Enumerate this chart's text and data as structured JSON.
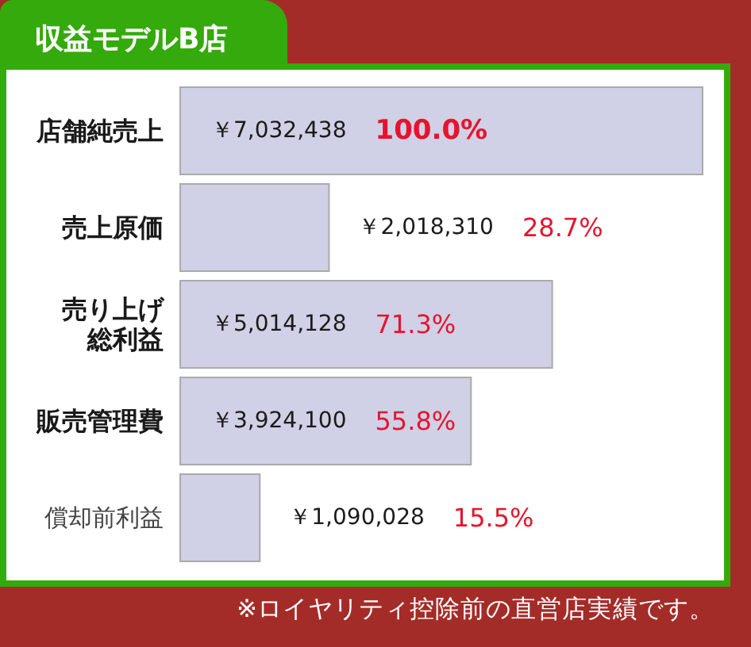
{
  "chart_data": {
    "type": "bar",
    "orientation": "horizontal",
    "title": "収益モデルB店",
    "categories": [
      "店舗純売上",
      "売上原価",
      "売り上げ総利益",
      "販売管理費",
      "償却前利益"
    ],
    "values": [
      7032438,
      2018310,
      5014128,
      3924100,
      1090028
    ],
    "color": "#d0d0e6",
    "value_labels": [
      "￥7,032,438",
      "￥2,018,310",
      "￥5,014,128",
      "￥3,924,100",
      "￥1,090,028"
    ],
    "annotations": [
      "100.0%",
      "28.7%",
      "71.3%",
      "55.8%",
      "15.5%",
      "※ロイヤリティ控除前の直営店実績です。"
    ]
  }
}
